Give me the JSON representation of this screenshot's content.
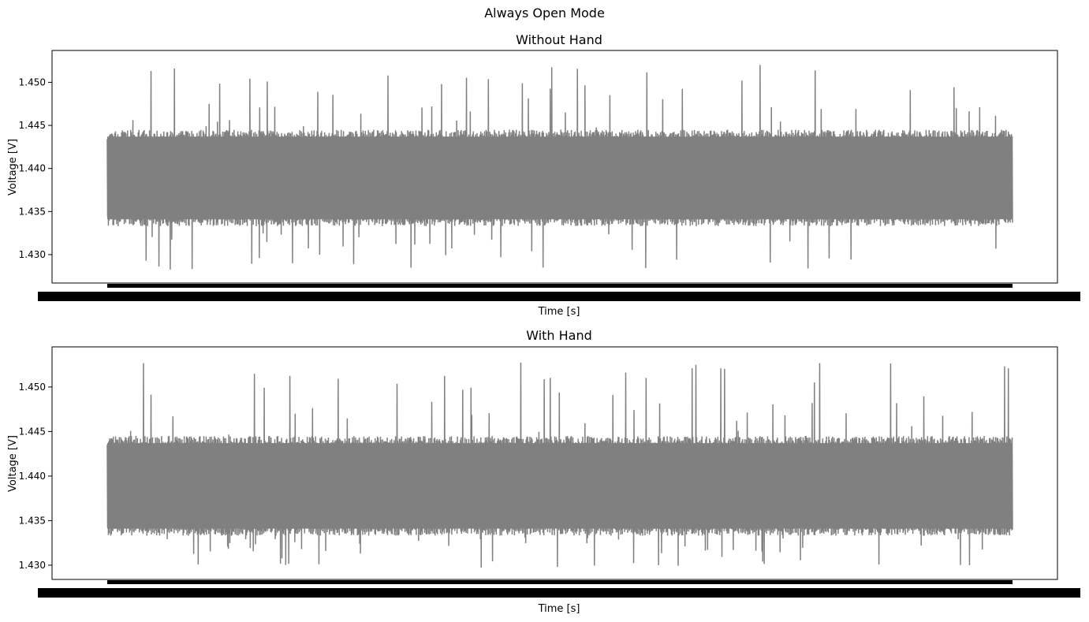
{
  "figure": {
    "suptitle": "Always Open Mode"
  },
  "chart_data": [
    {
      "type": "line",
      "title": "Without Hand",
      "xlabel": "Time [s]",
      "ylabel": "Voltage [V]",
      "ylim": [
        1.4267,
        1.4537
      ],
      "yticks": [
        "1.430",
        "1.435",
        "1.440",
        "1.445",
        "1.450"
      ],
      "xticklabels": "dense, overlapping (unreadable)",
      "grid": false,
      "series": [
        {
          "color": "#808080",
          "band_low": 1.4333,
          "band_high": 1.4445,
          "max": 1.4527,
          "min": 1.4279
        }
      ]
    },
    {
      "type": "line",
      "title": "With Hand",
      "xlabel": "Time [s]",
      "ylabel": "Voltage [V]",
      "ylim": [
        1.4284,
        1.4545
      ],
      "yticks": [
        "1.430",
        "1.435",
        "1.440",
        "1.445",
        "1.450"
      ],
      "xticklabels": "dense, overlapping (unreadable)",
      "grid": false,
      "series": [
        {
          "color": "#808080",
          "band_low": 1.4333,
          "band_high": 1.4445,
          "max": 1.453,
          "min": 1.4295
        }
      ]
    }
  ]
}
